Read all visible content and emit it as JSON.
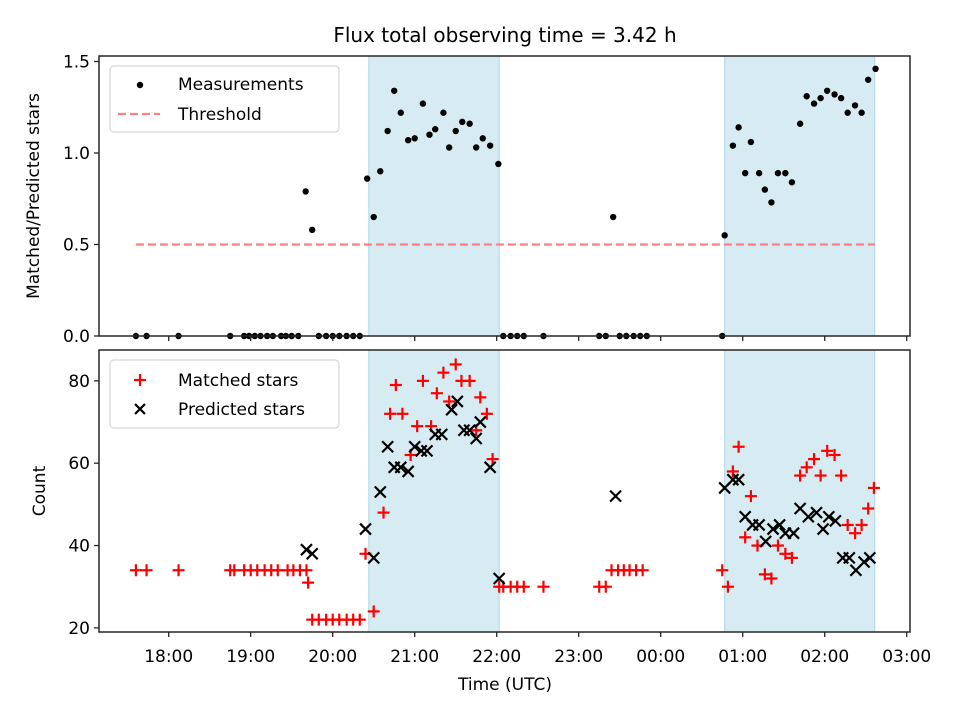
{
  "chart_data": [
    {
      "id": "ratio",
      "type": "scatter",
      "title": "Flux total observing time = 3.42 h",
      "xlabel": "",
      "ylabel": "Matched/Predicted stars",
      "xlim_hours": [
        17.15,
        27.04
      ],
      "ylim": [
        0,
        1.53
      ],
      "yticks": [
        0.0,
        0.5,
        1.0,
        1.5
      ],
      "ytick_labels": [
        "0.0",
        "0.5",
        "1.0",
        "1.5"
      ],
      "grid": false,
      "legend_position": "top-left",
      "legend": [
        {
          "label": "Measurements",
          "marker": "dot",
          "color": "#000000"
        },
        {
          "label": "Threshold",
          "marker": "dashed-line",
          "color": "#f08080"
        }
      ],
      "threshold": {
        "value": 0.5,
        "x_start_hours": 17.6,
        "x_end_hours": 26.61,
        "color": "#ff7f7f"
      },
      "shaded_spans_hours": [
        [
          20.44,
          22.03
        ],
        [
          24.78,
          26.61
        ]
      ],
      "shade_color": "#add8e6",
      "series": [
        {
          "name": "Measurements",
          "color": "#000000",
          "x_hours": [
            17.6,
            17.73,
            18.12,
            18.75,
            18.92,
            18.98,
            19.05,
            19.12,
            19.2,
            19.27,
            19.37,
            19.43,
            19.5,
            19.58,
            19.67,
            19.75,
            19.83,
            19.92,
            20.0,
            20.08,
            20.17,
            20.25,
            20.33,
            20.42,
            20.5,
            20.58,
            20.67,
            20.75,
            20.83,
            20.92,
            21.0,
            21.1,
            21.18,
            21.25,
            21.35,
            21.42,
            21.5,
            21.58,
            21.67,
            21.75,
            21.83,
            21.92,
            22.02,
            22.08,
            22.17,
            22.25,
            22.33,
            22.57,
            23.25,
            23.33,
            23.42,
            23.5,
            23.58,
            23.67,
            23.75,
            23.83,
            24.75,
            24.78,
            24.88,
            24.95,
            25.03,
            25.1,
            25.2,
            25.27,
            25.35,
            25.43,
            25.52,
            25.6,
            25.7,
            25.78,
            25.87,
            25.95,
            26.03,
            26.12,
            26.2,
            26.28,
            26.37,
            26.45,
            26.53,
            26.62
          ],
          "y": [
            0,
            0,
            0,
            0,
            0,
            0,
            0,
            0,
            0,
            0,
            0,
            0,
            0,
            0,
            0.79,
            0.58,
            0,
            0,
            0,
            0,
            0,
            0,
            0,
            0.86,
            0.65,
            0.9,
            1.12,
            1.34,
            1.22,
            1.07,
            1.08,
            1.27,
            1.1,
            1.13,
            1.22,
            1.03,
            1.12,
            1.17,
            1.16,
            1.03,
            1.08,
            1.04,
            0.94,
            0,
            0,
            0,
            0,
            0,
            0,
            0,
            0.65,
            0,
            0,
            0,
            0,
            0,
            0,
            0.55,
            1.04,
            1.14,
            0.89,
            1.06,
            0.89,
            0.8,
            0.73,
            0.89,
            0.89,
            0.84,
            1.16,
            1.31,
            1.27,
            1.3,
            1.34,
            1.32,
            1.3,
            1.22,
            1.26,
            1.22,
            1.4,
            1.46
          ]
        }
      ]
    },
    {
      "id": "counts",
      "type": "scatter",
      "title": "",
      "xlabel": "Time (UTC)",
      "ylabel": "Count",
      "xlim_hours": [
        17.15,
        27.04
      ],
      "ylim": [
        19,
        87.5
      ],
      "yticks": [
        20,
        40,
        60,
        80
      ],
      "ytick_labels": [
        "20",
        "40",
        "60",
        "80"
      ],
      "xticks_hours": [
        18,
        19,
        20,
        21,
        22,
        23,
        24,
        25,
        26,
        27
      ],
      "xtick_labels": [
        "18:00",
        "19:00",
        "20:00",
        "21:00",
        "22:00",
        "23:00",
        "00:00",
        "01:00",
        "02:00",
        "03:00"
      ],
      "grid": false,
      "legend_position": "top-left",
      "legend": [
        {
          "label": "Matched stars",
          "marker": "plus",
          "color": "#ff0000"
        },
        {
          "label": "Predicted stars",
          "marker": "x",
          "color": "#000000"
        }
      ],
      "shaded_spans_hours": [
        [
          20.44,
          22.03
        ],
        [
          24.78,
          26.61
        ]
      ],
      "shade_color": "#add8e6",
      "series": [
        {
          "name": "Matched stars",
          "marker": "plus",
          "color": "#ff0000",
          "x_hours": [
            17.6,
            17.73,
            18.12,
            18.75,
            18.8,
            18.92,
            19.0,
            19.08,
            19.17,
            19.25,
            19.33,
            19.45,
            19.52,
            19.6,
            19.68,
            19.7,
            19.75,
            19.83,
            19.92,
            20.0,
            20.08,
            20.17,
            20.25,
            20.33,
            20.4,
            20.5,
            20.62,
            20.7,
            20.77,
            20.85,
            20.95,
            21.03,
            21.1,
            21.2,
            21.27,
            21.35,
            21.42,
            21.5,
            21.57,
            21.67,
            21.75,
            21.8,
            21.88,
            21.95,
            22.03,
            22.08,
            22.17,
            22.25,
            22.33,
            22.57,
            23.25,
            23.33,
            23.4,
            23.48,
            23.55,
            23.62,
            23.7,
            23.78,
            24.75,
            24.82,
            24.88,
            24.95,
            25.03,
            25.1,
            25.18,
            25.27,
            25.35,
            25.43,
            25.52,
            25.6,
            25.7,
            25.78,
            25.87,
            25.95,
            26.03,
            26.12,
            26.2,
            26.28,
            26.37,
            26.45,
            26.53,
            26.6
          ],
          "y": [
            34,
            34,
            34,
            34,
            34,
            34,
            34,
            34,
            34,
            34,
            34,
            34,
            34,
            34,
            34,
            31,
            22,
            22,
            22,
            22,
            22,
            22,
            22,
            22,
            38,
            24,
            48,
            72,
            79,
            72,
            62,
            69,
            80,
            69,
            77,
            82,
            75,
            84,
            80,
            80,
            68,
            76,
            72,
            61,
            30,
            30,
            30,
            30,
            30,
            30,
            30,
            30,
            34,
            34,
            34,
            34,
            34,
            34,
            34,
            30,
            58,
            64,
            42,
            52,
            40,
            33,
            32,
            40,
            38,
            37,
            57,
            59,
            61,
            57,
            63,
            62,
            57,
            45,
            43,
            45,
            49,
            54
          ]
        },
        {
          "name": "Predicted stars",
          "marker": "x",
          "color": "#000000",
          "x_hours": [
            19.68,
            19.75,
            20.4,
            20.5,
            20.58,
            20.67,
            20.75,
            20.83,
            20.92,
            21.0,
            21.08,
            21.15,
            21.25,
            21.33,
            21.45,
            21.52,
            21.6,
            21.67,
            21.75,
            21.8,
            21.92,
            22.03,
            23.45,
            24.78,
            24.88,
            24.95,
            25.03,
            25.12,
            25.2,
            25.28,
            25.37,
            25.45,
            25.52,
            25.62,
            25.7,
            25.8,
            25.9,
            25.98,
            26.05,
            26.13,
            26.22,
            26.3,
            26.38,
            26.48,
            26.55
          ],
          "y": [
            39,
            38,
            44,
            37,
            53,
            64,
            59,
            59,
            58,
            64,
            63,
            63,
            67,
            67,
            73,
            75,
            68,
            68,
            66,
            70,
            59,
            32,
            52,
            54,
            56,
            56,
            47,
            45,
            45,
            41,
            44,
            45,
            43,
            43,
            49,
            47,
            48,
            44,
            47,
            46,
            37,
            37,
            34,
            36,
            37
          ]
        }
      ]
    }
  ]
}
